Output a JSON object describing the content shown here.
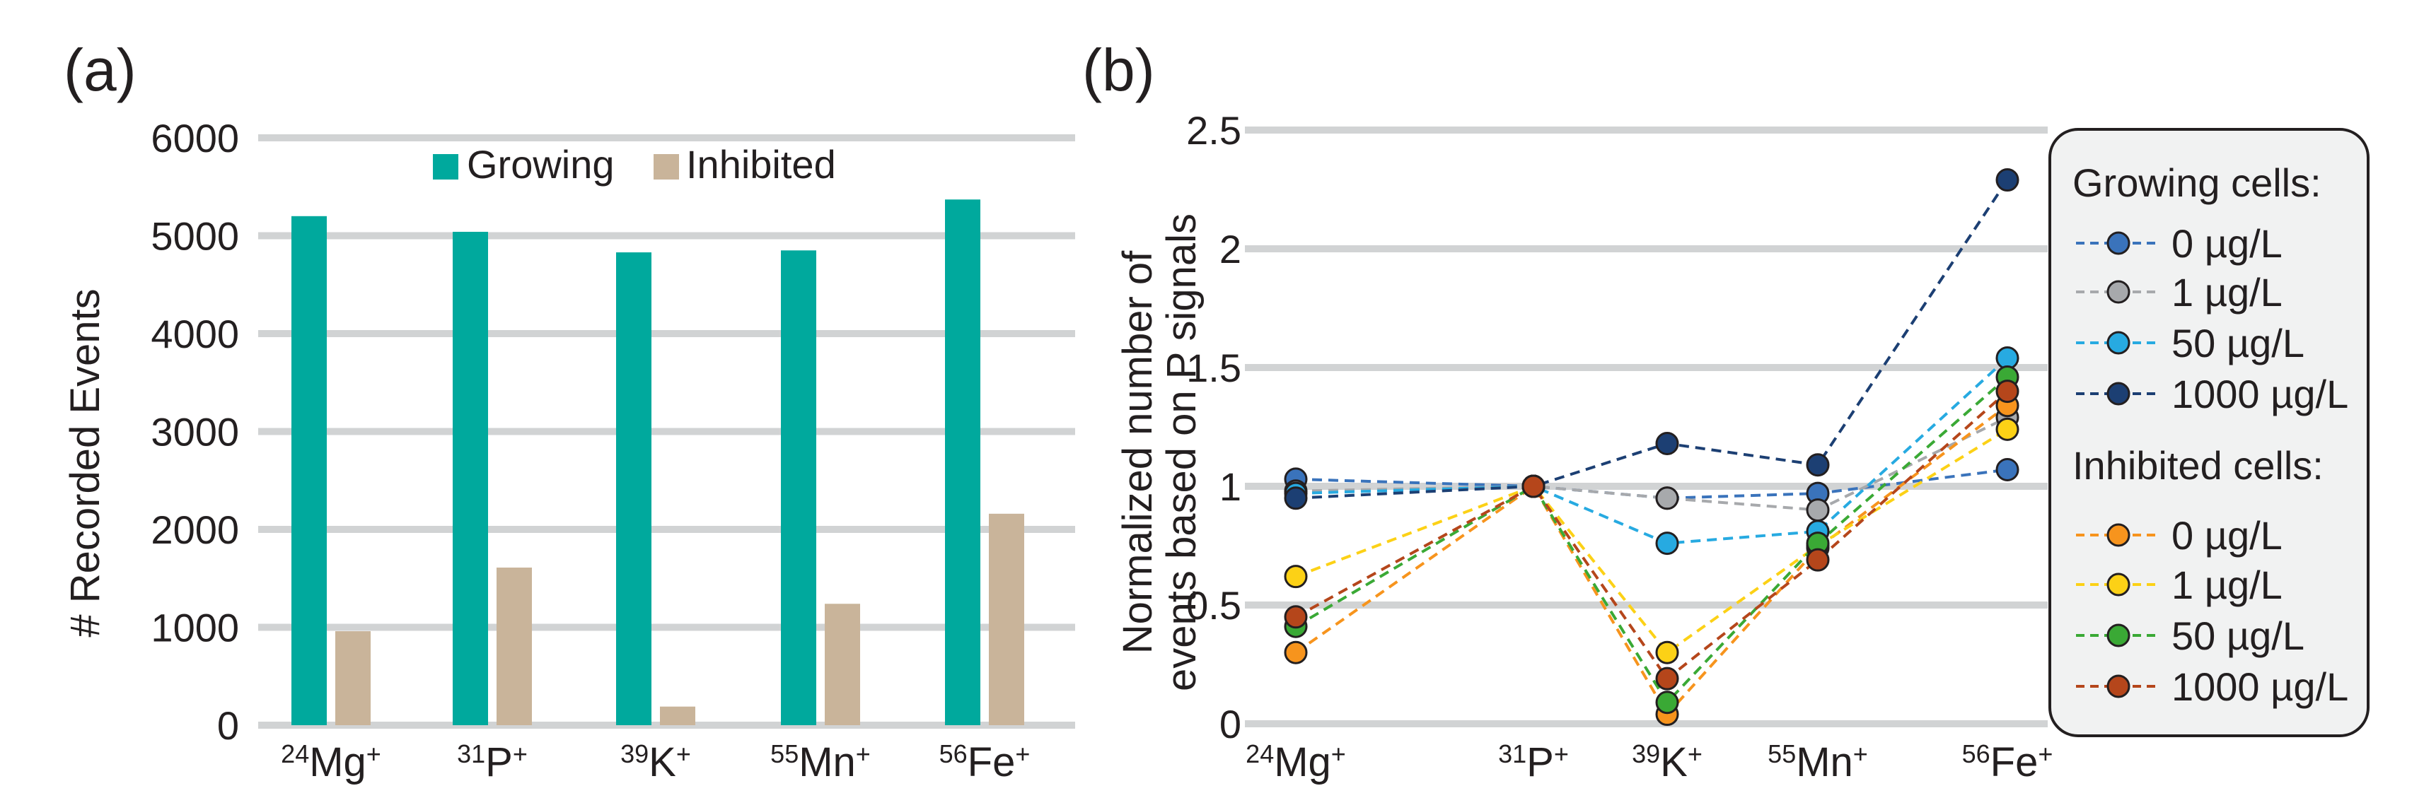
{
  "panel_a": {
    "label": "(a)",
    "legend": [
      {
        "name": "Growing",
        "color": "#00a99d"
      },
      {
        "name": "Inhibited",
        "color": "#c9b49a"
      }
    ]
  },
  "panel_b": {
    "label": "(b)",
    "legend": {
      "growing_title": "Growing cells:",
      "inhibited_title": "Inhibited cells:"
    }
  },
  "chart_data": [
    {
      "type": "bar",
      "ylabel": "# Recorded Events",
      "xlabel": "",
      "ylim": [
        0,
        6000
      ],
      "yticks": [
        0,
        1000,
        2000,
        3000,
        4000,
        5000,
        6000
      ],
      "grid": true,
      "legend_position": "top",
      "categories": [
        {
          "mass": "24",
          "el": "Mg",
          "charge": "+"
        },
        {
          "mass": "31",
          "el": "P",
          "charge": "+"
        },
        {
          "mass": "39",
          "el": "K",
          "charge": "+"
        },
        {
          "mass": "55",
          "el": "Mn",
          "charge": "+"
        },
        {
          "mass": "56",
          "el": "Fe",
          "charge": "+"
        }
      ],
      "series": [
        {
          "name": "Growing",
          "color": "#00a99d",
          "values": [
            5200,
            5040,
            4830,
            4850,
            5370
          ]
        },
        {
          "name": "Inhibited",
          "color": "#c9b49a",
          "values": [
            960,
            1610,
            190,
            1240,
            2160
          ]
        }
      ]
    },
    {
      "type": "line",
      "ylabel_lines": [
        "Normalized number of",
        "events based on P signals"
      ],
      "xlabel": "",
      "ylim": [
        0,
        2.5
      ],
      "yticks": [
        {
          "v": 0,
          "t": "0"
        },
        {
          "v": 0.5,
          "t": "0.5"
        },
        {
          "v": 1,
          "t": "1"
        },
        {
          "v": 1.5,
          "t": "1.5"
        },
        {
          "v": 2,
          "t": "2"
        },
        {
          "v": 2.5,
          "t": "2.5"
        }
      ],
      "grid": true,
      "legend_position": "right",
      "categories": [
        {
          "mass": "24",
          "el": "Mg",
          "charge": "+"
        },
        {
          "mass": "31",
          "el": "P",
          "charge": "+"
        },
        {
          "mass": "39",
          "el": "K",
          "charge": "+"
        },
        {
          "mass": "55",
          "el": "Mn",
          "charge": "+"
        },
        {
          "mass": "56",
          "el": "Fe",
          "charge": "+"
        }
      ],
      "series": [
        {
          "group": "Growing cells",
          "name": "0 µg/L",
          "color": "#3a73bb",
          "values": [
            1.03,
            1.0,
            0.95,
            0.97,
            1.07
          ]
        },
        {
          "group": "Growing cells",
          "name": "1 µg/L",
          "color": "#a7a9ac",
          "values": [
            0.98,
            1.0,
            0.95,
            0.9,
            1.29
          ]
        },
        {
          "group": "Growing cells",
          "name": "50 µg/L",
          "color": "#27aae1",
          "values": [
            0.97,
            1.0,
            0.76,
            0.81,
            1.54
          ]
        },
        {
          "group": "Growing cells",
          "name": "1000 µg/L",
          "color": "#1c3f73",
          "values": [
            0.95,
            1.0,
            1.18,
            1.09,
            2.29
          ]
        },
        {
          "group": "Inhibited cells",
          "name": "0 µg/L",
          "color": "#f7941d",
          "values": [
            0.3,
            1.0,
            0.04,
            0.74,
            1.34
          ]
        },
        {
          "group": "Inhibited cells",
          "name": "1 µg/L",
          "color": "#fcd116",
          "values": [
            0.62,
            1.0,
            0.3,
            0.75,
            1.24
          ]
        },
        {
          "group": "Inhibited cells",
          "name": "50 µg/L",
          "color": "#3aa935",
          "values": [
            0.41,
            1.0,
            0.09,
            0.76,
            1.46
          ]
        },
        {
          "group": "Inhibited cells",
          "name": "1000 µg/L",
          "color": "#b5461b",
          "values": [
            0.45,
            1.0,
            0.19,
            0.69,
            1.4
          ]
        }
      ]
    }
  ]
}
